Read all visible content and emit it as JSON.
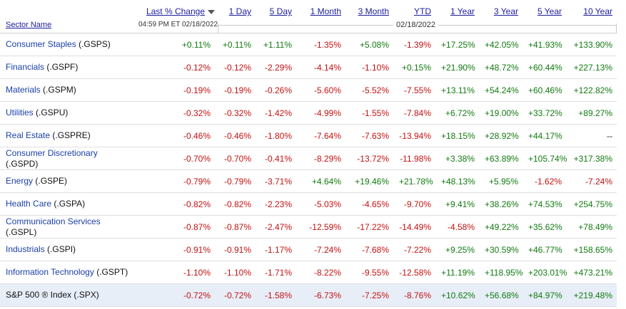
{
  "header": {
    "columns": [
      "Last % Change",
      "1 Day",
      "5 Day",
      "1 Month",
      "3 Month",
      "YTD",
      "1 Year",
      "3 Year",
      "5 Year",
      "10 Year"
    ],
    "sector_col": "Sector Name",
    "timestamp": "04:59 PM ET 02/18/2022",
    "as_of": "02/18/2022"
  },
  "rows": [
    {
      "name": "Consumer Staples",
      "symbol": "(.GSPS)",
      "values": [
        "+0.11%",
        "+0.11%",
        "+1.11%",
        "-1.35%",
        "+5.08%",
        "-1.39%",
        "+17.25%",
        "+42.05%",
        "+41.93%",
        "+133.90%"
      ]
    },
    {
      "name": "Financials",
      "symbol": "(.GSPF)",
      "values": [
        "-0.12%",
        "-0.12%",
        "-2.29%",
        "-4.14%",
        "-1.10%",
        "+0.15%",
        "+21.90%",
        "+48.72%",
        "+60.44%",
        "+227.13%"
      ]
    },
    {
      "name": "Materials",
      "symbol": "(.GSPM)",
      "values": [
        "-0.19%",
        "-0.19%",
        "-0.26%",
        "-5.60%",
        "-5.52%",
        "-7.55%",
        "+13.11%",
        "+54.24%",
        "+60.46%",
        "+122.82%"
      ]
    },
    {
      "name": "Utilities",
      "symbol": "(.GSPU)",
      "values": [
        "-0.32%",
        "-0.32%",
        "-1.42%",
        "-4.99%",
        "-1.55%",
        "-7.84%",
        "+6.72%",
        "+19.00%",
        "+33.72%",
        "+89.27%"
      ]
    },
    {
      "name": "Real Estate",
      "symbol": "(.GSPRE)",
      "values": [
        "-0.46%",
        "-0.46%",
        "-1.80%",
        "-7.64%",
        "-7.63%",
        "-13.94%",
        "+18.15%",
        "+28.92%",
        "+44.17%",
        "--"
      ]
    },
    {
      "name": "Consumer Discretionary",
      "symbol": "(.GSPD)",
      "values": [
        "-0.70%",
        "-0.70%",
        "-0.41%",
        "-8.29%",
        "-13.72%",
        "-11.98%",
        "+3.38%",
        "+63.89%",
        "+105.74%",
        "+317.38%"
      ]
    },
    {
      "name": "Energy",
      "symbol": "(.GSPE)",
      "values": [
        "-0.79%",
        "-0.79%",
        "-3.71%",
        "+4.64%",
        "+19.46%",
        "+21.78%",
        "+48.13%",
        "+5.95%",
        "-1.62%",
        "-7.24%"
      ]
    },
    {
      "name": "Health Care",
      "symbol": "(.GSPA)",
      "values": [
        "-0.82%",
        "-0.82%",
        "-2.23%",
        "-5.03%",
        "-4.65%",
        "-9.70%",
        "+9.41%",
        "+38.26%",
        "+74.53%",
        "+254.75%"
      ]
    },
    {
      "name": "Communication Services",
      "symbol": "(.GSPL)",
      "values": [
        "-0.87%",
        "-0.87%",
        "-2.47%",
        "-12.59%",
        "-17.22%",
        "-14.49%",
        "-4.58%",
        "+49.22%",
        "+35.62%",
        "+78.49%"
      ]
    },
    {
      "name": "Industrials",
      "symbol": "(.GSPI)",
      "values": [
        "-0.91%",
        "-0.91%",
        "-1.17%",
        "-7.24%",
        "-7.68%",
        "-7.22%",
        "+9.25%",
        "+30.59%",
        "+46.77%",
        "+158.65%"
      ]
    },
    {
      "name": "Information Technology",
      "symbol": "(.GSPT)",
      "values": [
        "-1.10%",
        "-1.10%",
        "-1.71%",
        "-8.22%",
        "-9.55%",
        "-12.58%",
        "+11.19%",
        "+118.95%",
        "+203.01%",
        "+473.21%"
      ]
    },
    {
      "name": "S&P 500 ® Index",
      "symbol": "(.SPX)",
      "values": [
        "-0.72%",
        "-0.72%",
        "-1.58%",
        "-6.73%",
        "-7.25%",
        "-8.76%",
        "+10.62%",
        "+56.68%",
        "+84.97%",
        "+219.48%"
      ]
    }
  ],
  "colors": {
    "positive": "#117a11",
    "negative": "#c21212",
    "link": "#1a3fa8",
    "index_row_bg": "#e8eef8"
  }
}
